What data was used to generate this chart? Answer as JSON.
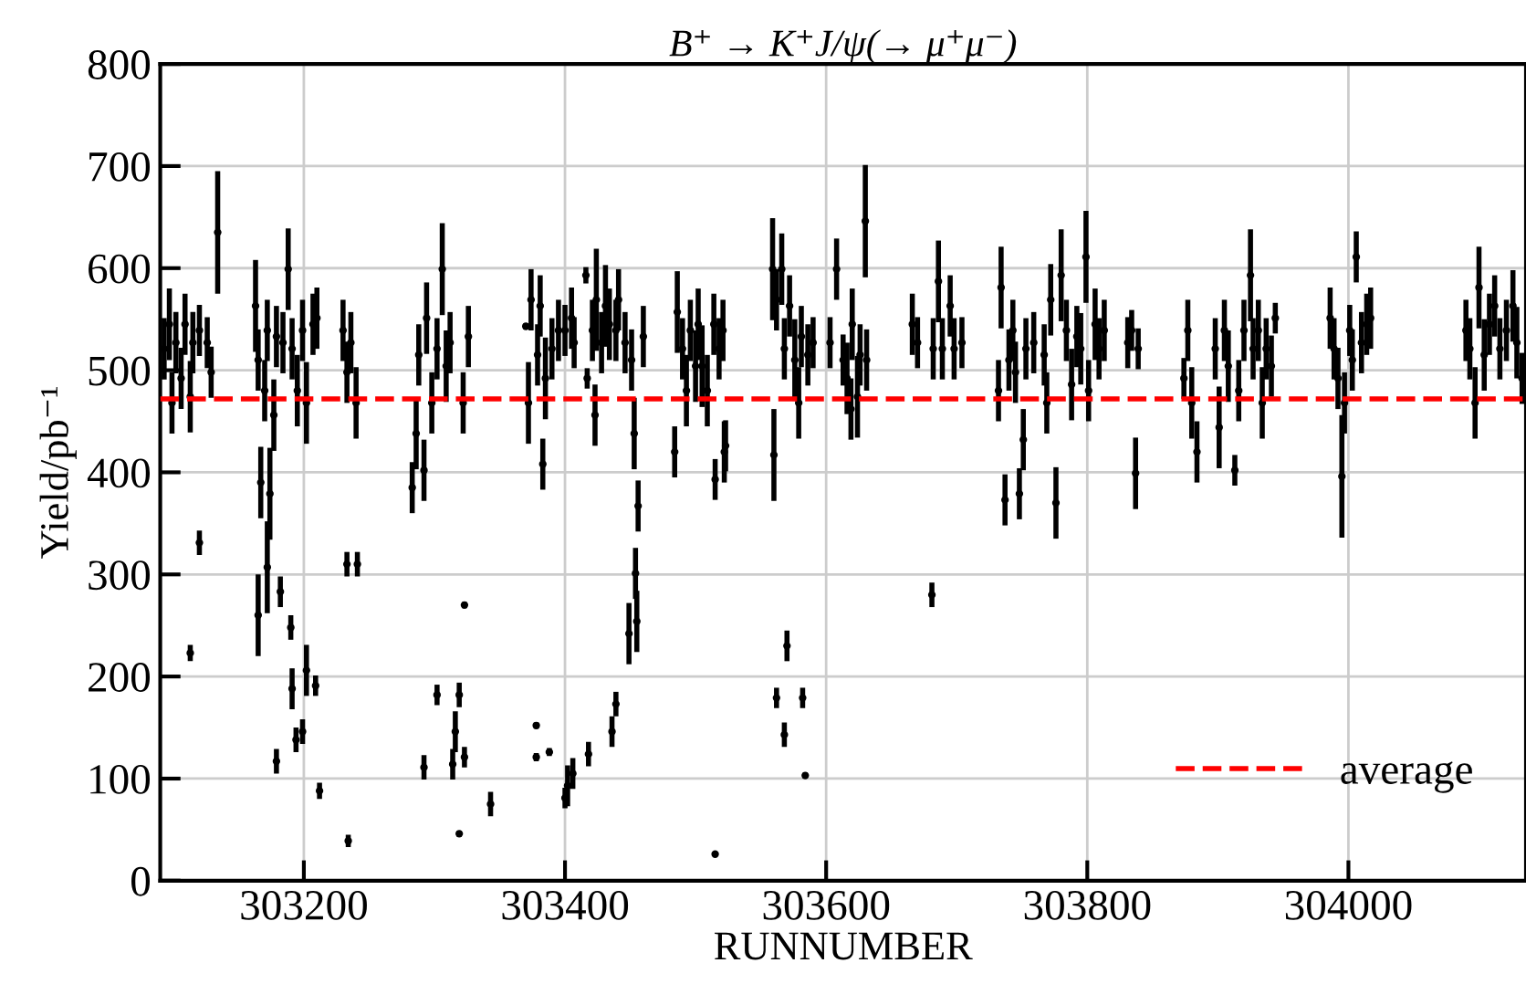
{
  "chart_data": {
    "type": "scatter",
    "title": "B⁺ → K⁺J/ψ(→ μ⁺μ⁻)",
    "xlabel": "RUNNUMBER",
    "ylabel": "Yield/pb⁻¹",
    "xlim": [
      303090,
      304136
    ],
    "ylim": [
      0,
      800
    ],
    "xticks": [
      303200,
      303400,
      303600,
      303800,
      304000
    ],
    "yticks": [
      0,
      100,
      200,
      300,
      400,
      500,
      600,
      700,
      800
    ],
    "grid": true,
    "legend": "bottom right",
    "marker": "circle",
    "ref_lines": [
      {
        "axis": "y",
        "value": 472,
        "label": "average",
        "color": "#ff0000",
        "line_style": "dashed"
      }
    ],
    "series": [
      {
        "color": "#000000",
        "x": [
          303093,
          303097,
          303099,
          303102,
          303106,
          303109,
          303113,
          303115,
          303120,
          303126,
          303129,
          303134,
          303113,
          303120,
          303163,
          303165,
          303167,
          303170,
          303172,
          303174,
          303177,
          303179,
          303184,
          303188,
          303191,
          303195,
          303199,
          303202,
          303207,
          303210,
          303165,
          303172,
          303179,
          303182,
          303190,
          303191,
          303194,
          303199,
          303202,
          303209,
          303212,
          303230,
          303233,
          303236,
          303240,
          303233,
          303241,
          303234,
          303283,
          303286,
          303288,
          303292,
          303294,
          303298,
          303302,
          303306,
          303309,
          303312,
          303322,
          303326,
          303292,
          303302,
          303314,
          303316,
          303319,
          303319,
          303323,
          303323,
          303343,
          303370,
          303372,
          303374,
          303379,
          303381,
          303383,
          303385,
          303390,
          303395,
          303400,
          303405,
          303407,
          303378,
          303378,
          303388,
          303400,
          303402,
          303406,
          303418,
          303416,
          303417,
          303421,
          303424,
          303423,
          303428,
          303431,
          303434,
          303439,
          303441,
          303446,
          303451,
          303453,
          303456,
          303460,
          303436,
          303439,
          303449,
          303454,
          303455,
          303484,
          303486,
          303490,
          303493,
          303496,
          303500,
          303502,
          303505,
          303509,
          303514,
          303518,
          303521,
          303523,
          303515,
          303515,
          303522,
          303559,
          303560,
          303562,
          303566,
          303568,
          303572,
          303576,
          303579,
          303581,
          303586,
          303590,
          303562,
          303568,
          303570,
          303582,
          303584,
          303603,
          303608,
          303613,
          303616,
          303619,
          303620,
          303624,
          303626,
          303630,
          303631,
          303666,
          303670,
          303681,
          303682,
          303686,
          303689,
          303695,
          303698,
          303704,
          303732,
          303734,
          303737,
          303740,
          303743,
          303745,
          303748,
          303751,
          303753,
          303759,
          303767,
          303769,
          303772,
          303776,
          303780,
          303784,
          303788,
          303792,
          303795,
          303799,
          303801,
          303806,
          303809,
          303813,
          303831,
          303834,
          303837,
          303839,
          303874,
          303877,
          303880,
          303884,
          303898,
          303901,
          303905,
          303908,
          303913,
          303916,
          303920,
          303925,
          303927,
          303931,
          303934,
          303937,
          303941,
          303944,
          303986,
          303989,
          303992,
          303995,
          303997,
          304001,
          304003,
          304006,
          304010,
          304014,
          304017,
          304090,
          304093,
          304097,
          304100,
          304104,
          304108,
          304112,
          304116,
          304121,
          304126,
          304129,
          304133
        ],
        "values": [
          521,
          545,
          468,
          527,
          492,
          545,
          474,
          527,
          539,
          527,
          498,
          635,
          223,
          331,
          563,
          510,
          390,
          480,
          539,
          379,
          456,
          533,
          527,
          599,
          521,
          480,
          539,
          468,
          545,
          551,
          260,
          307,
          117,
          283,
          248,
          188,
          138,
          146,
          206,
          191,
          88,
          539,
          498,
          527,
          468,
          310,
          310,
          39,
          385,
          438,
          515,
          402,
          551,
          468,
          521,
          599,
          504,
          527,
          468,
          533,
          111,
          182,
          114,
          146,
          182,
          46,
          270,
          121,
          75,
          543,
          468,
          569,
          515,
          563,
          408,
          492,
          521,
          539,
          539,
          551,
          527,
          152,
          121,
          126,
          81,
          93,
          105,
          124,
          593,
          492,
          539,
          569,
          456,
          527,
          563,
          545,
          539,
          569,
          527,
          510,
          438,
          367,
          533,
          146,
          173,
          242,
          301,
          254,
          420,
          557,
          521,
          480,
          539,
          504,
          545,
          504,
          480,
          545,
          521,
          539,
          426,
          393,
          26,
          420,
          599,
          417,
          569,
          599,
          521,
          563,
          510,
          468,
          533,
          515,
          527,
          179,
          143,
          230,
          179,
          103,
          527,
          599,
          510,
          492,
          462,
          545,
          474,
          515,
          646,
          510,
          545,
          527,
          280,
          521,
          587,
          521,
          563,
          521,
          527,
          480,
          581,
          373,
          510,
          539,
          498,
          379,
          432,
          521,
          527,
          515,
          468,
          569,
          370,
          593,
          539,
          486,
          533,
          521,
          611,
          480,
          545,
          521,
          539,
          527,
          539,
          399,
          521,
          492,
          539,
          468,
          420,
          521,
          444,
          539,
          504,
          402,
          480,
          539,
          593,
          521,
          539,
          468,
          521,
          504,
          551,
          551,
          521,
          492,
          396,
          468,
          539,
          510,
          611,
          527,
          545,
          551,
          539,
          521,
          468,
          581,
          515,
          545,
          563,
          521,
          539,
          563,
          527,
          492
        ],
        "errors": [
          30,
          35,
          30,
          30,
          30,
          30,
          35,
          30,
          25,
          25,
          25,
          60,
          8,
          12,
          45,
          30,
          35,
          30,
          30,
          45,
          35,
          30,
          30,
          40,
          30,
          35,
          30,
          40,
          30,
          30,
          40,
          45,
          12,
          15,
          12,
          20,
          12,
          12,
          25,
          10,
          8,
          30,
          30,
          30,
          35,
          12,
          12,
          6,
          25,
          35,
          30,
          30,
          35,
          30,
          30,
          45,
          35,
          30,
          30,
          30,
          12,
          10,
          15,
          20,
          12,
          3,
          3,
          10,
          12,
          3,
          40,
          30,
          30,
          30,
          25,
          40,
          30,
          30,
          25,
          30,
          25,
          3,
          4,
          4,
          10,
          20,
          15,
          12,
          8,
          10,
          30,
          50,
          30,
          30,
          40,
          35,
          30,
          30,
          30,
          30,
          35,
          25,
          30,
          15,
          12,
          30,
          25,
          30,
          25,
          40,
          30,
          35,
          30,
          35,
          35,
          40,
          35,
          30,
          30,
          30,
          25,
          20,
          2,
          30,
          50,
          45,
          30,
          35,
          30,
          30,
          40,
          35,
          30,
          30,
          25,
          10,
          12,
          15,
          10,
          3,
          25,
          30,
          25,
          35,
          30,
          35,
          40,
          30,
          55,
          30,
          30,
          25,
          12,
          30,
          40,
          30,
          30,
          30,
          25,
          30,
          40,
          25,
          30,
          30,
          30,
          25,
          30,
          30,
          30,
          30,
          30,
          35,
          35,
          45,
          30,
          35,
          30,
          35,
          45,
          30,
          35,
          30,
          30,
          25,
          20,
          35,
          20,
          20,
          30,
          35,
          30,
          30,
          40,
          30,
          35,
          15,
          30,
          30,
          45,
          30,
          30,
          35,
          30,
          30,
          15,
          30,
          30,
          30,
          60,
          30,
          25,
          30,
          25,
          30,
          30,
          30,
          30,
          30,
          35,
          40,
          35,
          30,
          30,
          30,
          30,
          35,
          35,
          25
        ]
      }
    ]
  }
}
